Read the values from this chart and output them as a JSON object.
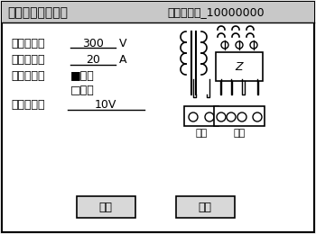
{
  "title_left": "自动测试参数设置",
  "title_right": "设备编号：_10000000",
  "label_voltage": "最大电压：",
  "value_voltage": "300",
  "unit_voltage": "V",
  "label_current": "最大电流：",
  "value_current": "20",
  "unit_current": "A",
  "label_direction": "记录方向：",
  "option1_checked": "■单相",
  "option2_unchecked": "□双向",
  "label_step": "电压步长：",
  "value_step": "10V",
  "btn_start": "开始",
  "btn_exit": "退出",
  "bg_color": "#f0f0f0",
  "border_color": "#000000",
  "text_color": "#000000",
  "title_bg": "#c8c8c8",
  "font_size_title": 10,
  "font_size_body": 9
}
